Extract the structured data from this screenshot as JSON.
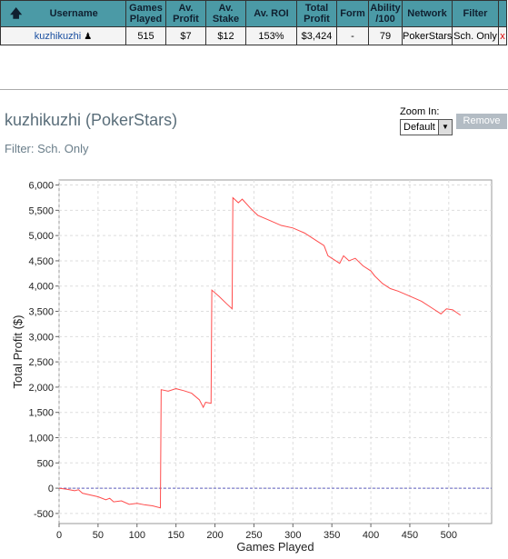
{
  "table": {
    "columns": [
      "Username",
      "Games Played",
      "Av. Profit",
      "Av. Stake",
      "Av. ROI",
      "Total Profit",
      "Form",
      "Ability /100",
      "Network",
      "Filter"
    ],
    "rows": [
      [
        "kuzhikuzhi",
        "515",
        "$7",
        "$12",
        "153%",
        "$3,424",
        "-",
        "79",
        "PokerStars",
        "Sch. Only"
      ]
    ],
    "close": "x"
  },
  "header": {
    "title": "kuzhikuzhi (PokerStars)",
    "filter": "Filter: Sch. Only",
    "zoom_label": "Zoom In:",
    "zoom_value": "Default",
    "remove_button": "Remove"
  },
  "chart_data": {
    "type": "line",
    "x_label": "Games Played",
    "y_label": "Total Profit ($)",
    "color": "#ff4c4c",
    "grid": true,
    "x": [
      0,
      10,
      20,
      25,
      30,
      50,
      60,
      65,
      70,
      80,
      90,
      100,
      110,
      120,
      130,
      131,
      140,
      150,
      160,
      170,
      180,
      185,
      188,
      195,
      196,
      205,
      215,
      222,
      223,
      230,
      235,
      245,
      255,
      270,
      285,
      300,
      315,
      330,
      340,
      345,
      355,
      360,
      365,
      372,
      380,
      390,
      400,
      405,
      415,
      425,
      435,
      450,
      465,
      480,
      490,
      497,
      505,
      515
    ],
    "values": [
      0,
      -20,
      -50,
      -30,
      -100,
      -170,
      -230,
      -200,
      -270,
      -250,
      -320,
      -300,
      -330,
      -350,
      -390,
      1950,
      1920,
      1970,
      1930,
      1880,
      1750,
      1600,
      1700,
      1680,
      3920,
      3800,
      3650,
      3550,
      5750,
      5650,
      5720,
      5550,
      5400,
      5300,
      5200,
      5150,
      5050,
      4900,
      4800,
      4600,
      4500,
      4450,
      4600,
      4500,
      4550,
      4400,
      4300,
      4200,
      4050,
      3950,
      3900,
      3800,
      3700,
      3550,
      3450,
      3550,
      3530,
      3424
    ],
    "xlim": [
      0,
      555
    ],
    "ylim": [
      -700,
      6100
    ],
    "xticks": [
      0,
      50,
      100,
      150,
      200,
      250,
      300,
      350,
      400,
      450,
      500
    ],
    "yticks": [
      -500,
      0,
      500,
      {
        "value": 1000,
        "label": "1,000"
      },
      {
        "value": 1500,
        "label": "1,500"
      },
      {
        "value": 2000,
        "label": "2,000"
      },
      {
        "value": 2500,
        "label": "2,500"
      },
      {
        "value": 3000,
        "label": "3,000"
      },
      {
        "value": 3500,
        "label": "3,500"
      },
      {
        "value": 4000,
        "label": "4,000"
      },
      {
        "value": 4500,
        "label": "4,500"
      },
      {
        "value": 5000,
        "label": "5,000"
      },
      {
        "value": 5500,
        "label": "5,500"
      },
      {
        "value": 6000,
        "label": "6,000"
      }
    ]
  }
}
